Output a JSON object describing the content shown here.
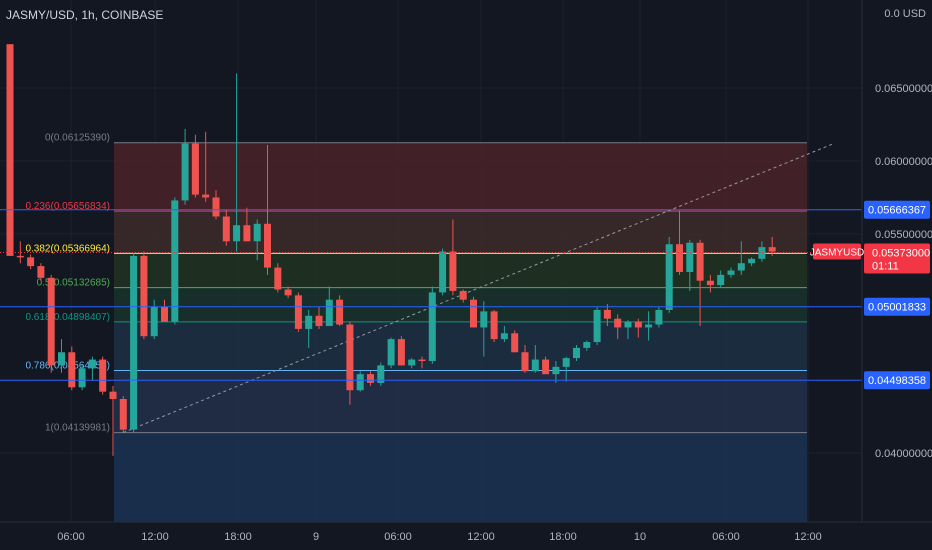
{
  "header": {
    "title": "JASMY/USD, 1h, COINBASE",
    "unit": "0.0 USD"
  },
  "colors": {
    "bg": "#131722",
    "up": "#26a69a",
    "down": "#ef5350",
    "grid": "#1e2230",
    "axis_text": "#b2b5be",
    "price_line_blue": "#2962ff"
  },
  "chart_data": {
    "type": "candlestick",
    "symbol": "JASMYUSD",
    "x_tick_labels": [
      "06:00",
      "12:00",
      "18:00",
      "9",
      "06:00",
      "12:00",
      "18:00",
      "10",
      "06:00",
      "12:00"
    ],
    "y_tick_labels": [
      "0.06500000",
      "0.06000000",
      "0.05500000",
      "0.04000000"
    ],
    "ylim": [
      0.0375,
      0.07
    ],
    "candles": [
      [
        0.068,
        0.068,
        0.0535,
        0.0535
      ],
      [
        0.0535,
        0.0545,
        0.053,
        0.0534
      ],
      [
        0.0534,
        0.0536,
        0.0526,
        0.0528
      ],
      [
        0.0528,
        0.053,
        0.0518,
        0.052
      ],
      [
        0.052,
        0.0522,
        0.0455,
        0.046
      ],
      [
        0.046,
        0.0478,
        0.0455,
        0.0469
      ],
      [
        0.0469,
        0.0473,
        0.0443,
        0.0445
      ],
      [
        0.0445,
        0.0461,
        0.0443,
        0.0458
      ],
      [
        0.0458,
        0.0466,
        0.045,
        0.0464
      ],
      [
        0.0464,
        0.0466,
        0.044,
        0.0442
      ],
      [
        0.0442,
        0.0446,
        0.0398,
        0.0437
      ],
      [
        0.0437,
        0.0439,
        0.0414,
        0.0416
      ],
      [
        0.0416,
        0.0537,
        0.0414,
        0.0535
      ],
      [
        0.0535,
        0.0538,
        0.0478,
        0.048
      ],
      [
        0.048,
        0.0505,
        0.0478,
        0.05
      ],
      [
        0.05,
        0.0505,
        0.049,
        0.049
      ],
      [
        0.049,
        0.0575,
        0.0488,
        0.0573
      ],
      [
        0.0573,
        0.0622,
        0.057,
        0.0612
      ],
      [
        0.0612,
        0.0618,
        0.0575,
        0.0577
      ],
      [
        0.0577,
        0.062,
        0.0572,
        0.0575
      ],
      [
        0.0575,
        0.058,
        0.056,
        0.0562
      ],
      [
        0.0562,
        0.0567,
        0.0542,
        0.0545
      ],
      [
        0.0545,
        0.066,
        0.0538,
        0.0556
      ],
      [
        0.0556,
        0.0568,
        0.0545,
        0.0545
      ],
      [
        0.0545,
        0.056,
        0.0532,
        0.0557
      ],
      [
        0.0557,
        0.0611,
        0.0522,
        0.0527
      ],
      [
        0.0527,
        0.053,
        0.051,
        0.0512
      ],
      [
        0.0512,
        0.0514,
        0.0506,
        0.0508
      ],
      [
        0.0508,
        0.051,
        0.0483,
        0.0485
      ],
      [
        0.0485,
        0.0498,
        0.0472,
        0.0494
      ],
      [
        0.0494,
        0.05,
        0.0485,
        0.0487
      ],
      [
        0.0487,
        0.0514,
        0.0487,
        0.0505
      ],
      [
        0.0505,
        0.0508,
        0.0487,
        0.0488
      ],
      [
        0.0488,
        0.049,
        0.0433,
        0.0443
      ],
      [
        0.0443,
        0.0456,
        0.0442,
        0.0454
      ],
      [
        0.0454,
        0.0456,
        0.0446,
        0.0448
      ],
      [
        0.0448,
        0.0462,
        0.0446,
        0.046
      ],
      [
        0.046,
        0.0479,
        0.0458,
        0.0478
      ],
      [
        0.0478,
        0.048,
        0.046,
        0.046
      ],
      [
        0.046,
        0.0465,
        0.0458,
        0.0464
      ],
      [
        0.0464,
        0.0466,
        0.0458,
        0.0463
      ],
      [
        0.0463,
        0.0514,
        0.0461,
        0.051
      ],
      [
        0.051,
        0.054,
        0.0508,
        0.0538
      ],
      [
        0.0538,
        0.056,
        0.0508,
        0.0511
      ],
      [
        0.0511,
        0.0512,
        0.0503,
        0.0505
      ],
      [
        0.0505,
        0.0507,
        0.0486,
        0.0486
      ],
      [
        0.0486,
        0.0504,
        0.0466,
        0.0497
      ],
      [
        0.0497,
        0.0498,
        0.0476,
        0.0478
      ],
      [
        0.0478,
        0.0487,
        0.0476,
        0.0482
      ],
      [
        0.0482,
        0.0484,
        0.0469,
        0.0469
      ],
      [
        0.0469,
        0.0474,
        0.0455,
        0.0456
      ],
      [
        0.0456,
        0.0474,
        0.0455,
        0.0464
      ],
      [
        0.0464,
        0.0466,
        0.0454,
        0.0454
      ],
      [
        0.0454,
        0.0463,
        0.0448,
        0.0459
      ],
      [
        0.0459,
        0.0466,
        0.0449,
        0.0465
      ],
      [
        0.0465,
        0.0474,
        0.0463,
        0.0472
      ],
      [
        0.0472,
        0.0477,
        0.047,
        0.0476
      ],
      [
        0.0476,
        0.05,
        0.0474,
        0.0498
      ],
      [
        0.0498,
        0.0502,
        0.0487,
        0.0492
      ],
      [
        0.0492,
        0.0495,
        0.0478,
        0.0486
      ],
      [
        0.0486,
        0.0491,
        0.0478,
        0.049
      ],
      [
        0.049,
        0.0492,
        0.0479,
        0.0486
      ],
      [
        0.0486,
        0.0497,
        0.0477,
        0.0488
      ],
      [
        0.0488,
        0.05,
        0.0486,
        0.0498
      ],
      [
        0.0498,
        0.0548,
        0.0496,
        0.0543
      ],
      [
        0.0543,
        0.0566,
        0.0522,
        0.0524
      ],
      [
        0.0524,
        0.0546,
        0.0511,
        0.0544
      ],
      [
        0.0544,
        0.0546,
        0.0487,
        0.0518
      ],
      [
        0.0518,
        0.0522,
        0.051,
        0.0515
      ],
      [
        0.0515,
        0.0525,
        0.0513,
        0.0522
      ],
      [
        0.0522,
        0.0527,
        0.052,
        0.0525
      ],
      [
        0.0525,
        0.0545,
        0.0522,
        0.053
      ],
      [
        0.053,
        0.0534,
        0.0528,
        0.0533
      ],
      [
        0.0533,
        0.0545,
        0.0531,
        0.0541
      ],
      [
        0.0541,
        0.0548,
        0.0535,
        0.0538
      ]
    ],
    "fib_levels": [
      {
        "label": "0(0.06125390)",
        "value": 0.0612539,
        "line": "#787b86",
        "fill": "#4a2328"
      },
      {
        "label": "0.236(0.05656834)",
        "value": 0.05656834,
        "line": "#f23645",
        "fill": "#3d2c2a"
      },
      {
        "label": "0.382(0.05366964)",
        "value": 0.05366964,
        "line": "#ffeb3b",
        "fill": "#213422"
      },
      {
        "label": "0.5(0.05132685)",
        "value": 0.05132685,
        "line": "#4caf50",
        "fill": "#1a332d"
      },
      {
        "label": "0.618(0.04898407)",
        "value": 0.04898407,
        "line": "#089981",
        "fill": "#1f3044"
      },
      {
        "label": "0.786(0.04564858)",
        "value": 0.04564858,
        "line": "#64b5f6",
        "fill": "#23304a"
      },
      {
        "label": "1(0.04139981)",
        "value": 0.04139981,
        "line": "#787b86",
        "fill": "#1b3452"
      }
    ],
    "trend_line": {
      "x_from": 11,
      "y_from": 0.0414,
      "x_to": 80,
      "y_to": 0.0612
    },
    "price_lines": [
      {
        "value": 0.05666367,
        "label": "0.05666367",
        "color": "#2962ff"
      },
      {
        "value": 0.05001833,
        "label": "0.05001833",
        "color": "#2962ff"
      },
      {
        "value": 0.04498358,
        "label": "0.04498358",
        "color": "#2962ff"
      }
    ],
    "last_price": {
      "value": 0.05373,
      "label": "0.05373000",
      "countdown": "01:11",
      "color": "#f23645"
    }
  }
}
